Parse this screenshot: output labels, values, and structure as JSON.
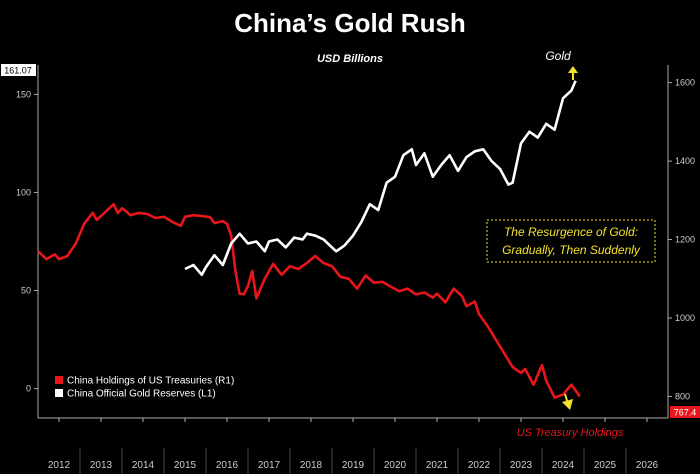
{
  "chart_data": {
    "type": "line",
    "title": "China’s Gold Rush",
    "subtitle": "USD Billions",
    "x_ticks": [
      "2012",
      "2013",
      "2014",
      "2015",
      "2016",
      "2017",
      "2018",
      "2019",
      "2020",
      "2021",
      "2022",
      "2023",
      "2024",
      "2025",
      "2026"
    ],
    "xlim": [
      2011.5,
      2026.5
    ],
    "left_axis": {
      "ticks": [
        "150",
        "100",
        "50",
        "0"
      ],
      "ylim": [
        -15,
        165
      ],
      "last_value": "161.07"
    },
    "right_axis": {
      "ticks": [
        "1600",
        "1400",
        "1200",
        "1000",
        "800"
      ],
      "ylim": [
        745,
        1645
      ],
      "last_value": "767.4"
    },
    "series": [
      {
        "name": "China Holdings of US Treasuries (R1)",
        "axis": "right",
        "color": "#e8161c",
        "x": [
          2011.5,
          2011.7,
          2011.9,
          2012.0,
          2012.2,
          2012.4,
          2012.6,
          2012.8,
          2012.9,
          2013.1,
          2013.3,
          2013.4,
          2013.5,
          2013.6,
          2013.7,
          2013.9,
          2014.1,
          2014.3,
          2014.5,
          2014.7,
          2014.9,
          2015.0,
          2015.2,
          2015.4,
          2015.6,
          2015.7,
          2015.9,
          2016.0,
          2016.1,
          2016.2,
          2016.3,
          2016.4,
          2016.5,
          2016.6,
          2016.7,
          2016.9,
          2017.1,
          2017.3,
          2017.5,
          2017.7,
          2017.9,
          2018.1,
          2018.3,
          2018.5,
          2018.7,
          2018.9,
          2019.1,
          2019.3,
          2019.5,
          2019.7,
          2019.9,
          2020.1,
          2020.3,
          2020.5,
          2020.7,
          2020.9,
          2021.0,
          2021.2,
          2021.4,
          2021.6,
          2021.7,
          2021.9,
          2022.0,
          2022.2,
          2022.4,
          2022.6,
          2022.8,
          2023.0,
          2023.1,
          2023.3,
          2023.5,
          2023.6,
          2023.8,
          2024.0,
          2024.2,
          2024.3,
          2024.4
        ],
        "values": [
          1170,
          1150,
          1162,
          1150,
          1158,
          1190,
          1240,
          1268,
          1250,
          1270,
          1290,
          1268,
          1280,
          1272,
          1262,
          1268,
          1265,
          1255,
          1258,
          1245,
          1235,
          1258,
          1262,
          1260,
          1257,
          1242,
          1247,
          1240,
          1210,
          1120,
          1062,
          1060,
          1082,
          1120,
          1050,
          1100,
          1138,
          1110,
          1132,
          1125,
          1140,
          1158,
          1140,
          1132,
          1105,
          1100,
          1075,
          1108,
          1090,
          1092,
          1080,
          1068,
          1075,
          1060,
          1065,
          1052,
          1062,
          1040,
          1075,
          1055,
          1030,
          1042,
          1010,
          980,
          945,
          910,
          875,
          860,
          870,
          830,
          880,
          840,
          797,
          805,
          830,
          815,
          800
        ]
      },
      {
        "name": "China Official Gold Reserves (L1)",
        "axis": "left",
        "color": "#ffffff",
        "x": [
          2015.0,
          2015.2,
          2015.4,
          2015.5,
          2015.7,
          2015.9,
          2016.1,
          2016.3,
          2016.5,
          2016.7,
          2016.9,
          2017.0,
          2017.2,
          2017.4,
          2017.6,
          2017.8,
          2017.9,
          2018.1,
          2018.3,
          2018.5,
          2018.6,
          2018.8,
          2019.0,
          2019.2,
          2019.4,
          2019.6,
          2019.8,
          2020.0,
          2020.2,
          2020.4,
          2020.5,
          2020.7,
          2020.9,
          2021.1,
          2021.3,
          2021.5,
          2021.7,
          2021.9,
          2022.1,
          2022.3,
          2022.5,
          2022.7,
          2022.8,
          2023.0,
          2023.2,
          2023.4,
          2023.6,
          2023.8,
          2024.0,
          2024.2,
          2024.3
        ],
        "values": [
          61,
          63,
          58,
          62,
          68,
          63,
          74,
          79,
          74,
          75,
          70,
          75,
          76,
          72,
          77,
          76,
          79,
          78,
          76,
          72,
          70,
          73,
          78,
          85,
          94,
          91,
          105,
          108,
          119,
          122,
          114,
          120,
          108,
          114,
          119,
          111,
          118,
          121,
          122,
          116,
          112,
          104,
          105,
          125,
          131,
          128,
          135,
          132,
          148,
          152,
          157
        ]
      }
    ],
    "legend": {
      "placement": "bottom-left"
    },
    "annotations": [
      {
        "text": "Gold"
      },
      {
        "text": "The Resurgence of Gold:"
      },
      {
        "text": "Gradually, Then Suddenly"
      },
      {
        "text": "US Treasury Holdings"
      }
    ],
    "colors": {
      "background": "#000000",
      "gold_text": "#f5e22a",
      "treasury": "#e8161c",
      "gold_line": "#ffffff",
      "axis_text": "#cccccc"
    },
    "grid": false
  }
}
